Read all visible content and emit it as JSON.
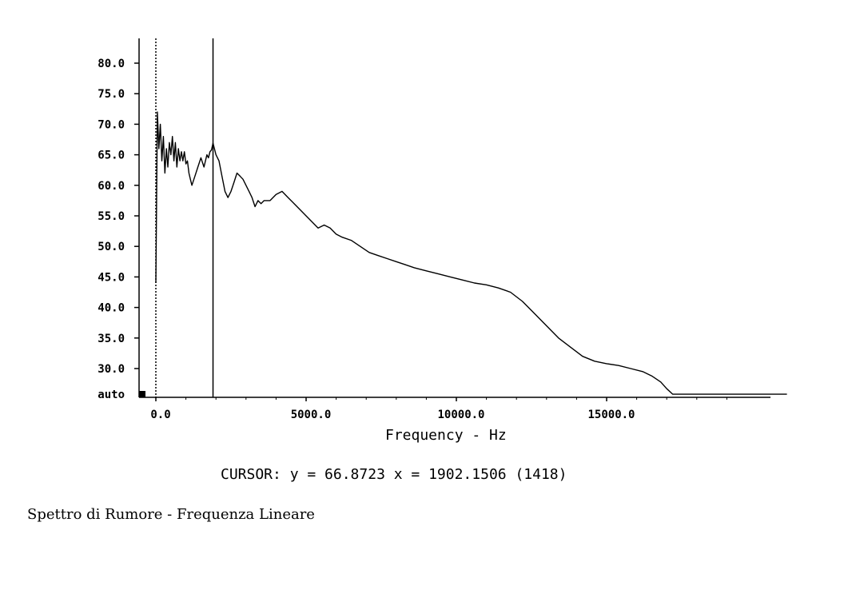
{
  "chart_data": {
    "type": "line",
    "title": "",
    "xlabel": "Frequency - Hz",
    "ylabel": "",
    "xlim": [
      0,
      21000
    ],
    "ylim": [
      26,
      83
    ],
    "y_ticks": [
      "80.0",
      "75.0",
      "70.0",
      "65.0",
      "60.0",
      "55.0",
      "50.0",
      "45.0",
      "40.0",
      "35.0",
      "30.0"
    ],
    "y_bottom_label": "auto",
    "x_ticks": [
      "0.0",
      "5000.0",
      "10000.0",
      "15000.0"
    ],
    "grid": false,
    "cursor_lines_x": [
      0,
      1902.15
    ],
    "series": [
      {
        "x": [
          0,
          50,
          100,
          150,
          200,
          250,
          300,
          350,
          400,
          450,
          500,
          550,
          600,
          650,
          700,
          750,
          800,
          850,
          900,
          950,
          1000,
          1050,
          1100,
          1150,
          1200,
          1300,
          1400,
          1500,
          1600,
          1700,
          1750,
          1800,
          1850,
          1902,
          1950,
          2000,
          2100,
          2200,
          2300,
          2400,
          2500,
          2600,
          2700,
          2800,
          2900,
          3000,
          3100,
          3200,
          3300,
          3400,
          3500,
          3600,
          3800,
          4000,
          4200,
          4400,
          4600,
          4800,
          5000,
          5200,
          5400,
          5600,
          5800,
          6000,
          6200,
          6500,
          6800,
          7100,
          7400,
          7700,
          8000,
          8300,
          8600,
          9000,
          9400,
          9800,
          10200,
          10600,
          11000,
          11400,
          11800,
          12200,
          12600,
          13000,
          13400,
          13800,
          14200,
          14600,
          15000,
          15400,
          15800,
          16200,
          16500,
          16800,
          17000,
          17200,
          18000,
          19000,
          20000,
          21000
        ],
        "y": [
          44.0,
          72.0,
          66.0,
          70.0,
          64.0,
          68.0,
          62.0,
          66.0,
          63.0,
          67.0,
          65.0,
          68.0,
          64.0,
          67.0,
          63.0,
          66.0,
          64.0,
          65.5,
          64.0,
          65.5,
          63.5,
          64.0,
          62.0,
          61.0,
          60.0,
          61.5,
          63.0,
          64.5,
          63.0,
          65.0,
          64.5,
          65.5,
          65.8,
          66.9,
          66.0,
          65.0,
          64.0,
          61.5,
          59.0,
          58.0,
          59.0,
          60.5,
          62.0,
          61.5,
          61.0,
          60.0,
          59.0,
          58.0,
          56.5,
          57.5,
          57.0,
          57.5,
          57.5,
          58.5,
          59.0,
          58.0,
          57.0,
          56.0,
          55.0,
          54.0,
          53.0,
          53.5,
          53.0,
          52.0,
          51.5,
          51.0,
          50.0,
          49.0,
          48.5,
          48.0,
          47.5,
          47.0,
          46.5,
          46.0,
          45.5,
          45.0,
          44.5,
          44.0,
          43.7,
          43.2,
          42.5,
          41.0,
          39.0,
          37.0,
          35.0,
          33.5,
          32.0,
          31.2,
          30.8,
          30.5,
          30.0,
          29.5,
          28.8,
          27.8,
          26.7,
          25.8,
          25.8,
          25.8,
          25.8,
          25.8
        ]
      }
    ]
  },
  "cursor_readout": "CURSOR: y = 66.8723 x = 1902.1506 (1418)",
  "caption": "Spettro di Rumore - Frequenza Lineare"
}
